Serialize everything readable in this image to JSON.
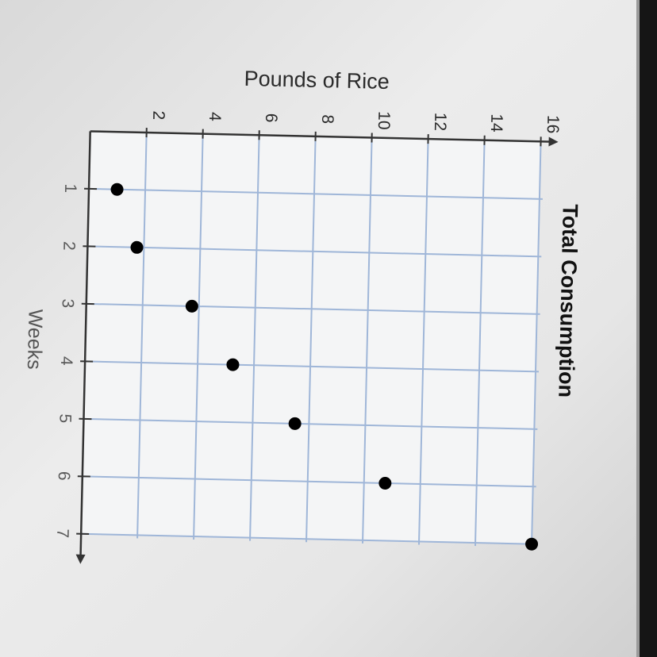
{
  "chart_data": {
    "type": "scatter",
    "title": "Total Consumption",
    "xlabel": "Weeks",
    "ylabel": "Pounds of Rice",
    "x_ticks": [
      "1",
      "2",
      "3",
      "4",
      "5",
      "6",
      "7"
    ],
    "y_ticks": [
      "2",
      "4",
      "6",
      "8",
      "10",
      "12",
      "14",
      "16"
    ],
    "xlim": [
      0,
      7
    ],
    "ylim": [
      0,
      16
    ],
    "grid": true,
    "points": [
      {
        "x": 1,
        "y": 1
      },
      {
        "x": 2,
        "y": 1.75
      },
      {
        "x": 3,
        "y": 3.75
      },
      {
        "x": 4,
        "y": 5.25
      },
      {
        "x": 5,
        "y": 7.5
      },
      {
        "x": 6,
        "y": 10.75
      },
      {
        "x": 7,
        "y": 16
      }
    ],
    "colors": {
      "point": "#000000",
      "grid": "#9fb6d8",
      "axis": "#333333",
      "text": "#2a2a2a"
    }
  }
}
